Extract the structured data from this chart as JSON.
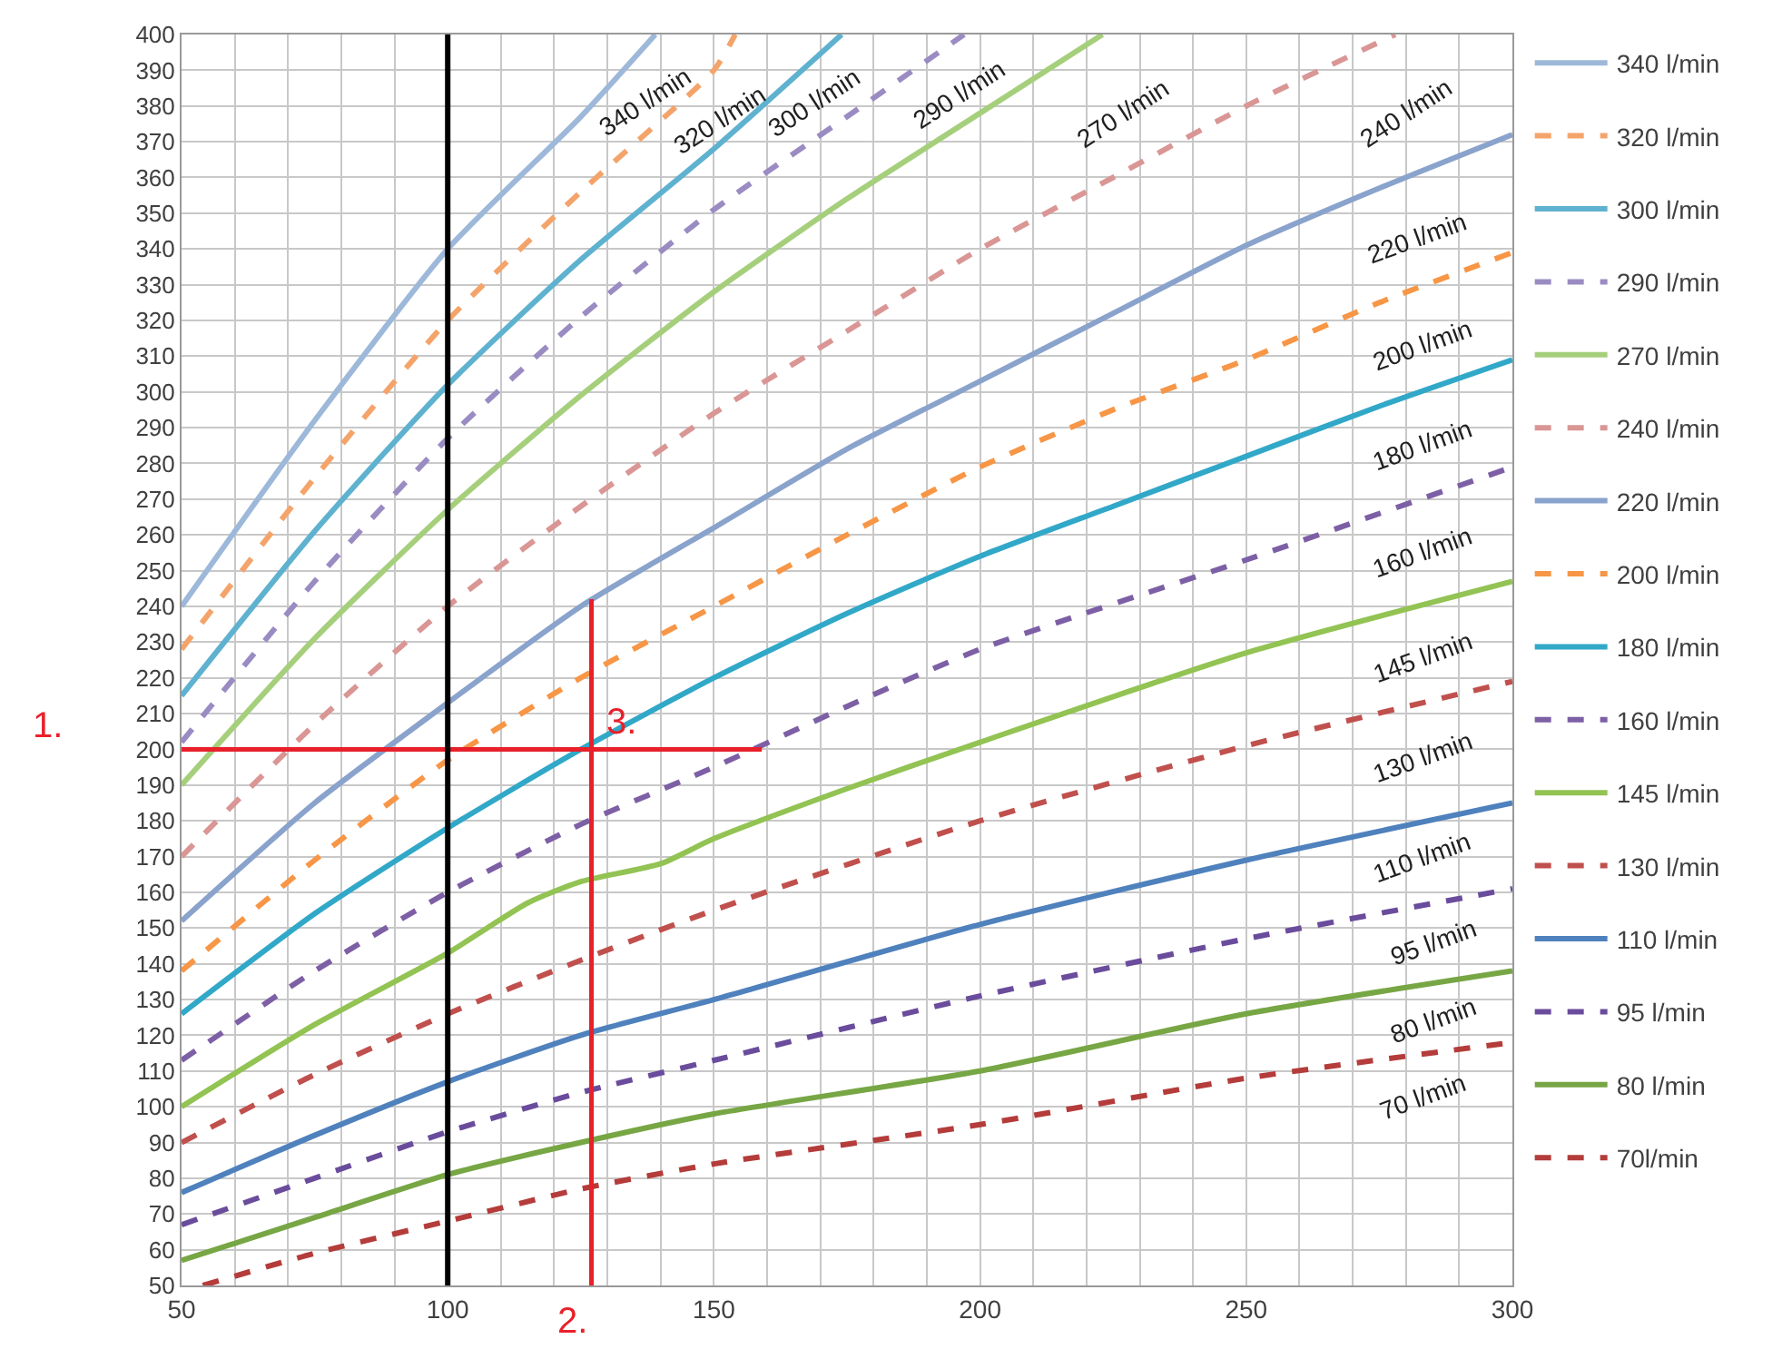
{
  "chart_data": {
    "type": "line",
    "xlim": [
      50,
      300
    ],
    "ylim": [
      50,
      400
    ],
    "xticks": [
      50,
      {
        "value": 60,
        "label": null
      },
      {
        "value": 70,
        "label": null
      },
      {
        "value": 80,
        "label": null
      },
      {
        "value": 90,
        "label": null
      },
      100,
      {
        "value": 110,
        "label": null
      },
      {
        "value": 120,
        "label": null
      },
      {
        "value": 130,
        "label": null
      },
      {
        "value": 140,
        "label": null
      },
      150,
      {
        "value": 160,
        "label": null
      },
      {
        "value": 170,
        "label": null
      },
      {
        "value": 180,
        "label": null
      },
      {
        "value": 190,
        "label": null
      },
      200,
      {
        "value": 210,
        "label": null
      },
      {
        "value": 220,
        "label": null
      },
      {
        "value": 230,
        "label": null
      },
      {
        "value": 240,
        "label": null
      },
      250,
      {
        "value": 260,
        "label": null
      },
      {
        "value": 270,
        "label": null
      },
      {
        "value": 280,
        "label": null
      },
      {
        "value": 290,
        "label": null
      },
      300
    ],
    "yticks": [
      50,
      60,
      70,
      80,
      90,
      100,
      110,
      120,
      130,
      140,
      150,
      160,
      170,
      180,
      190,
      200,
      210,
      220,
      230,
      240,
      250,
      260,
      270,
      280,
      290,
      300,
      310,
      320,
      330,
      340,
      350,
      360,
      370,
      380,
      390,
      400
    ],
    "grid": true,
    "legend": "top right",
    "series": [
      {
        "name": "340 l/min",
        "color": "#9db8d9",
        "line_style": "solid",
        "x": [
          50,
          75,
          100,
          125,
          139
        ],
        "values": [
          240,
          292,
          340,
          377,
          400
        ]
      },
      {
        "name": "320 l/min",
        "color": "#f4a46a",
        "line_style": "dashed",
        "x": [
          50,
          75,
          100,
          125,
          150,
          154
        ],
        "values": [
          228,
          276,
          320,
          356,
          390,
          400
        ]
      },
      {
        "name": "300 l/min",
        "color": "#5fb2cf",
        "line_style": "solid",
        "x": [
          50,
          75,
          100,
          125,
          150,
          174
        ],
        "values": [
          215,
          261,
          302,
          337,
          368,
          400
        ]
      },
      {
        "name": "290 l/min",
        "color": "#9a8cc2",
        "line_style": "dashed",
        "x": [
          50,
          75,
          100,
          125,
          150,
          175,
          197
        ],
        "values": [
          202,
          247,
          287,
          321,
          351,
          377,
          400
        ]
      },
      {
        "name": "270 l/min",
        "color": "#a6cf7c",
        "line_style": "solid",
        "x": [
          50,
          75,
          100,
          125,
          150,
          175,
          200,
          223
        ],
        "values": [
          190,
          231,
          267,
          299,
          328,
          354,
          378,
          400
        ]
      },
      {
        "name": "240 l/min",
        "color": "#d99694",
        "line_style": "dashed",
        "x": [
          50,
          75,
          100,
          125,
          150,
          175,
          200,
          225,
          250,
          278
        ],
        "values": [
          170,
          207,
          240,
          268,
          294,
          317,
          340,
          360,
          380,
          400
        ]
      },
      {
        "name": "220 l/min",
        "color": "#8aa3cc",
        "line_style": "solid",
        "x": [
          50,
          75,
          100,
          125,
          150,
          175,
          200,
          225,
          250,
          275,
          300
        ],
        "values": [
          152,
          185,
          213,
          240,
          262,
          284,
          303,
          322,
          341,
          357,
          372
        ]
      },
      {
        "name": "200 l/min",
        "color": "#f79646",
        "line_style": "dashed",
        "x": [
          50,
          75,
          100,
          125,
          150,
          175,
          200,
          225,
          250,
          275,
          300
        ],
        "values": [
          138,
          169,
          197,
          220,
          240,
          260,
          279,
          295,
          309,
          325,
          339
        ]
      },
      {
        "name": "180 l/min",
        "color": "#31a8c8",
        "line_style": "solid",
        "x": [
          50,
          75,
          100,
          125,
          150,
          175,
          200,
          225,
          250,
          275,
          300
        ],
        "values": [
          126,
          154,
          178,
          200,
          220,
          238,
          254,
          268,
          282,
          296,
          309
        ]
      },
      {
        "name": "160 l/min",
        "color": "#7d5fa5",
        "line_style": "dashed",
        "x": [
          50,
          75,
          100,
          125,
          150,
          175,
          200,
          250,
          300
        ],
        "values": [
          113,
          138,
          160,
          179,
          195,
          212,
          228,
          253,
          279
        ]
      },
      {
        "name": "145 l/min",
        "color": "#92c353",
        "line_style": "solid",
        "x": [
          50,
          75,
          100,
          115,
          125,
          140,
          150,
          175,
          200,
          250,
          300
        ],
        "values": [
          100,
          123,
          143,
          157,
          163,
          168,
          175,
          189,
          202,
          227,
          247
        ]
      },
      {
        "name": "130 l/min",
        "color": "#c0504d",
        "line_style": "dashed",
        "x": [
          50,
          75,
          100,
          125,
          150,
          200,
          250,
          300
        ],
        "values": [
          90,
          109,
          126,
          141,
          155,
          180,
          201,
          219
        ]
      },
      {
        "name": "110 l/min",
        "color": "#4f81bd",
        "line_style": "solid",
        "x": [
          50,
          75,
          100,
          125,
          150,
          200,
          250,
          300
        ],
        "values": [
          76,
          92,
          107,
          120,
          130,
          151,
          169,
          185
        ]
      },
      {
        "name": "95 l/min",
        "color": "#6a4c9c",
        "line_style": "dashed",
        "x": [
          50,
          75,
          100,
          125,
          150,
          200,
          250,
          300
        ],
        "values": [
          67,
          80,
          93,
          104,
          113,
          131,
          147,
          161
        ]
      },
      {
        "name": "80 l/min",
        "color": "#77a644",
        "line_style": "solid",
        "x": [
          50,
          75,
          100,
          125,
          150,
          200,
          250,
          300
        ],
        "values": [
          57,
          69,
          81,
          90,
          98,
          110,
          126,
          138
        ]
      },
      {
        "name": "70l/min",
        "color": "#b43c3a",
        "line_style": "dashed",
        "x": [
          54,
          75,
          100,
          125,
          150,
          200,
          250,
          300
        ],
        "values": [
          50,
          59,
          68,
          77,
          84,
          95,
          108,
          118
        ]
      },
      {
        "color": "#e8202a",
        "line_style": "solid",
        "x": [
          50,
          159
        ],
        "values": [
          200,
          200
        ]
      },
      {
        "color": "#e8202a",
        "line_style": "solid",
        "x": [
          127,
          127
        ],
        "values": [
          50,
          242
        ]
      }
    ],
    "ref_lines": [
      {
        "axis": "x",
        "value": 100,
        "color": "#000000"
      }
    ],
    "annotations": [
      "340 l/min",
      "320 l/min",
      "300 l/min",
      "290 l/min",
      "270 l/min",
      "240 l/min",
      "220 l/min",
      "200 l/min",
      "180 l/min",
      "160 l/min",
      "145 l/min",
      "130 l/min",
      "110 l/min",
      "95 l/min",
      "80 l/min",
      "70 l/min",
      {
        "text": "3.",
        "x": 127,
        "y": 200
      },
      "1.",
      "2."
    ]
  }
}
